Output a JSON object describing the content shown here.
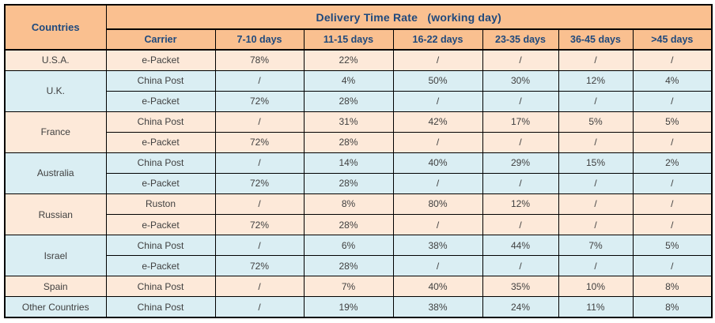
{
  "chart_data": {
    "type": "table",
    "title": "Delivery Time Rate   (working day)",
    "corner_header": "Countries",
    "column_headers": [
      "Carrier",
      "7-10 days",
      "11-15 days",
      "16-22 days",
      "23-35 days",
      "36-45 days",
      ">45 days"
    ],
    "groups": [
      {
        "country": "U.S.A.",
        "tone": "peach",
        "rows": [
          {
            "carrier": "e-Packet",
            "values": [
              "78%",
              "22%",
              "/",
              "/",
              "/",
              "/"
            ]
          }
        ]
      },
      {
        "country": "U.K.",
        "tone": "blue",
        "rows": [
          {
            "carrier": "China Post",
            "values": [
              "/",
              "4%",
              "50%",
              "30%",
              "12%",
              "4%"
            ]
          },
          {
            "carrier": "e-Packet",
            "values": [
              "72%",
              "28%",
              "/",
              "/",
              "/",
              "/"
            ]
          }
        ]
      },
      {
        "country": "France",
        "tone": "peach",
        "rows": [
          {
            "carrier": "China Post",
            "values": [
              "/",
              "31%",
              "42%",
              "17%",
              "5%",
              "5%"
            ]
          },
          {
            "carrier": "e-Packet",
            "values": [
              "72%",
              "28%",
              "/",
              "/",
              "/",
              "/"
            ]
          }
        ]
      },
      {
        "country": "Australia",
        "tone": "blue",
        "rows": [
          {
            "carrier": "China Post",
            "values": [
              "/",
              "14%",
              "40%",
              "29%",
              "15%",
              "2%"
            ]
          },
          {
            "carrier": "e-Packet",
            "values": [
              "72%",
              "28%",
              "/",
              "/",
              "/",
              "/"
            ]
          }
        ]
      },
      {
        "country": "Russian",
        "tone": "peach",
        "rows": [
          {
            "carrier": "Ruston",
            "values": [
              "/",
              "8%",
              "80%",
              "12%",
              "/",
              "/"
            ]
          },
          {
            "carrier": "e-Packet",
            "values": [
              "72%",
              "28%",
              "/",
              "/",
              "/",
              "/"
            ]
          }
        ]
      },
      {
        "country": "Israel",
        "tone": "blue",
        "rows": [
          {
            "carrier": "China Post",
            "values": [
              "/",
              "6%",
              "38%",
              "44%",
              "7%",
              "5%"
            ]
          },
          {
            "carrier": "e-Packet",
            "values": [
              "72%",
              "28%",
              "/",
              "/",
              "/",
              "/"
            ]
          }
        ]
      },
      {
        "country": "Spain",
        "tone": "peach",
        "rows": [
          {
            "carrier": "China Post",
            "values": [
              "/",
              "7%",
              "40%",
              "35%",
              "10%",
              "8%"
            ]
          }
        ]
      },
      {
        "country": "Other Countries",
        "tone": "blue",
        "rows": [
          {
            "carrier": "China Post",
            "values": [
              "/",
              "19%",
              "38%",
              "24%",
              "11%",
              "8%"
            ]
          }
        ]
      }
    ]
  },
  "colors": {
    "header_bg": "#FAC090",
    "row_peach": "#FDE9D9",
    "row_blue": "#DAEEF3",
    "header_text": "#1F497D",
    "body_text": "#404040",
    "border": "#000000"
  }
}
